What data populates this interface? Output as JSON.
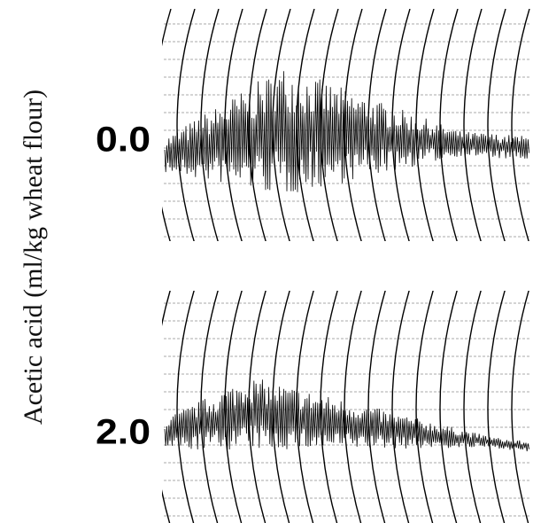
{
  "axis_label": "Acetic acid (ml/kg wheat flour)",
  "panels": [
    {
      "label": "0.0"
    },
    {
      "label": "2.0"
    }
  ]
}
